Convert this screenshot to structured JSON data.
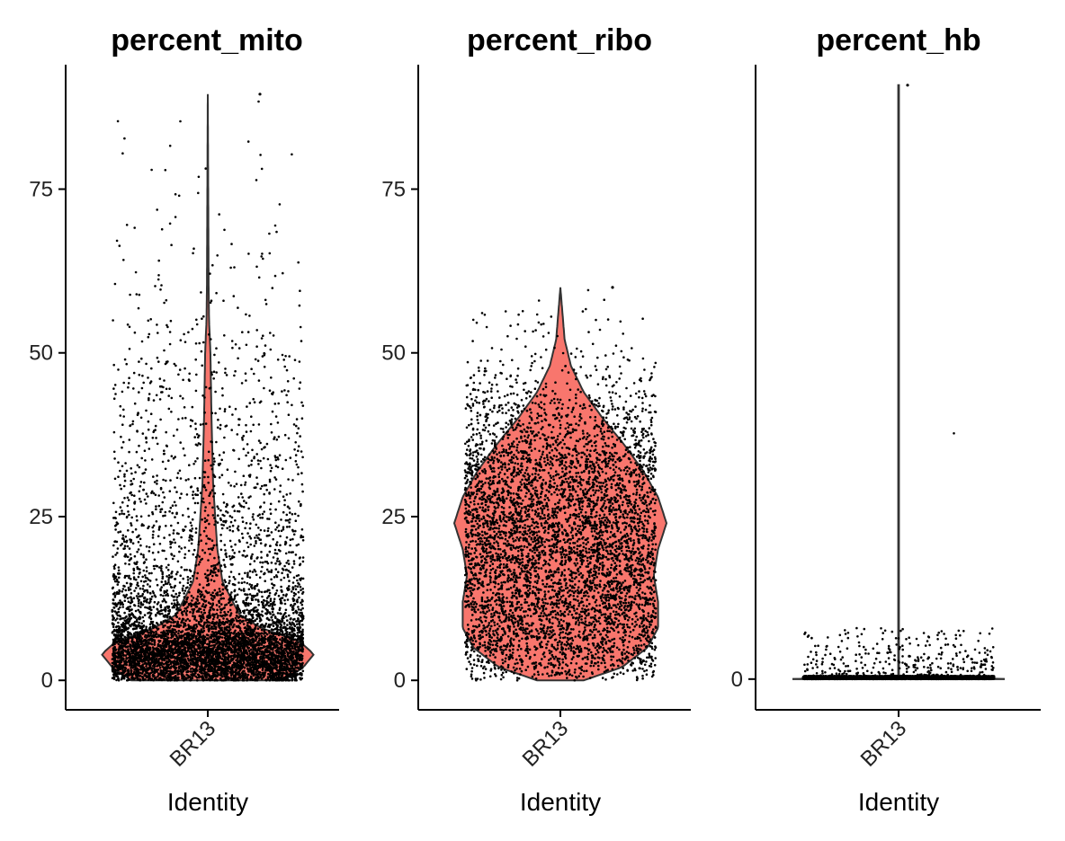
{
  "chart_data": [
    {
      "type": "violin",
      "title": "percent_mito",
      "xlabel": "Identity",
      "categories": [
        "BR13"
      ],
      "yticks": [
        0,
        25,
        50,
        75
      ],
      "ylim": [
        -4.5,
        94
      ],
      "fill_color": "#F8766D",
      "max_value": 89.5,
      "distribution": {
        "median": 4.5,
        "q1": 2.5,
        "q3": 7.5,
        "min": 0,
        "max": 89.5,
        "mode": 4.5
      },
      "violin_profile": [
        [
          0,
          0.72
        ],
        [
          2,
          0.9
        ],
        [
          4,
          1.0
        ],
        [
          6,
          0.86
        ],
        [
          8,
          0.5
        ],
        [
          10,
          0.3
        ],
        [
          15,
          0.14
        ],
        [
          20,
          0.09
        ],
        [
          25,
          0.07
        ],
        [
          30,
          0.05
        ],
        [
          40,
          0.035
        ],
        [
          50,
          0.025
        ],
        [
          55,
          0.012
        ],
        [
          60,
          0.008
        ],
        [
          89.5,
          0.0
        ]
      ],
      "n_points": 6500
    },
    {
      "type": "violin",
      "title": "percent_ribo",
      "xlabel": "Identity",
      "categories": [
        "BR13"
      ],
      "yticks": [
        0,
        25,
        50,
        75
      ],
      "ylim": [
        -4.5,
        94
      ],
      "fill_color": "#F8766D",
      "max_value": 60,
      "distribution": {
        "median": 22,
        "q1": 12,
        "q3": 30,
        "min": 0,
        "max": 60,
        "mode": 24
      },
      "violin_profile": [
        [
          0,
          0.22
        ],
        [
          2,
          0.58
        ],
        [
          5,
          0.82
        ],
        [
          8,
          0.92
        ],
        [
          12,
          0.92
        ],
        [
          16,
          0.88
        ],
        [
          20,
          0.92
        ],
        [
          24,
          1.0
        ],
        [
          28,
          0.92
        ],
        [
          32,
          0.78
        ],
        [
          36,
          0.6
        ],
        [
          40,
          0.4
        ],
        [
          44,
          0.22
        ],
        [
          48,
          0.1
        ],
        [
          52,
          0.04
        ],
        [
          56,
          0.02
        ],
        [
          60,
          0.0
        ]
      ],
      "n_points": 5500
    },
    {
      "type": "violin",
      "title": "percent_hb",
      "xlabel": "Identity",
      "categories": [
        "BR13"
      ],
      "yticks": [
        0
      ],
      "ylim": [
        -0.3,
        6
      ],
      "fill_color": "#F8766D",
      "max_value": 5.8,
      "distribution": {
        "median": 0,
        "q1": 0,
        "q3": 0,
        "min": 0,
        "max": 5.8,
        "mode": 0
      },
      "violin_profile": [
        [
          0,
          1.0
        ],
        [
          0.005,
          0.003
        ],
        [
          5.8,
          0.003
        ]
      ],
      "n_points": 5000
    }
  ]
}
